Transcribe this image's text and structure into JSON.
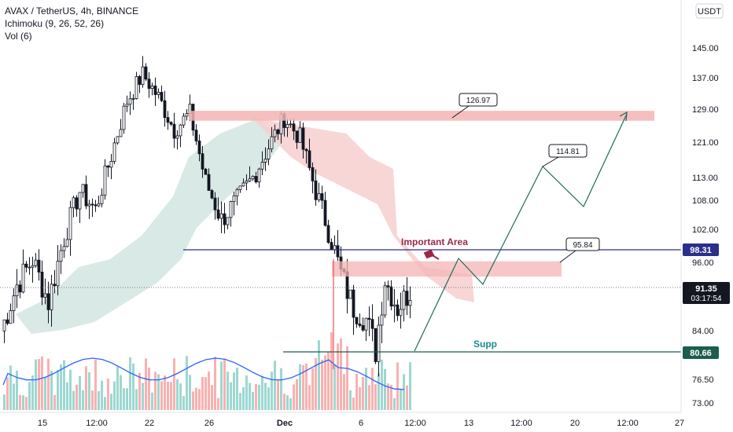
{
  "legend": {
    "symbol_line": "AVAX / TetherUS, 4h, BINANCE",
    "indicator1": "Ichimoku (9, 26, 52, 26)",
    "indicator2": "Vol (6)"
  },
  "currency_button": "USDT",
  "colors": {
    "up": "#26a69a",
    "down": "#ef5350",
    "candle": "#131722",
    "resistance_zone": "#f4b4b4",
    "level_line": "#2a2e8c",
    "support_line": "#1b5e50",
    "path_line": "#1e6b58",
    "important_text": "#9c2748",
    "volume_ma": "#2962ff",
    "cloud_green": "#cfe3df",
    "cloud_red": "#f7cfcf"
  },
  "chart_data": {
    "type": "candlestick",
    "y_axis": {
      "ticks": [
        "145.00",
        "137.00",
        "129.00",
        "121.00",
        "113.00",
        "108.00",
        "102.00",
        "96.00",
        "84.00",
        "76.50",
        "73.00"
      ],
      "current_price": "91.35",
      "countdown": "03:17:54",
      "label_980": "98.31",
      "label_806": "80.66"
    },
    "x_axis": {
      "ticks": [
        "15",
        "12:00",
        "22",
        "26",
        "Dec",
        "6",
        "12:00",
        "13",
        "12:00",
        "20",
        "12:00",
        "27"
      ]
    },
    "annotations": {
      "important_area": "Important Area",
      "support": "Supp",
      "callout_top": "126.97",
      "callout_mid": "114.81",
      "callout_low": "95.84"
    },
    "price_path": [
      {
        "date_index": 0,
        "open": 86.5,
        "close": 84.0
      },
      {
        "date_index": 5,
        "open": 84.0,
        "close": 92.0
      },
      {
        "date_index": 10,
        "open": 92.0,
        "close": 96.5
      },
      {
        "date_index": 15,
        "open": 96.5,
        "close": 89.0
      },
      {
        "date_index": 20,
        "open": 89.0,
        "close": 100.5
      },
      {
        "date_index": 25,
        "open": 100.5,
        "close": 110.0
      },
      {
        "date_index": 30,
        "open": 110.0,
        "close": 106.0
      },
      {
        "date_index": 35,
        "open": 106.0,
        "close": 118.0
      },
      {
        "date_index": 40,
        "open": 118.0,
        "close": 131.0
      },
      {
        "date_index": 45,
        "open": 131.0,
        "close": 138.0
      },
      {
        "date_index": 50,
        "open": 138.0,
        "close": 132.0
      },
      {
        "date_index": 55,
        "open": 132.0,
        "close": 124.0
      },
      {
        "date_index": 60,
        "open": 124.0,
        "close": 128.0
      },
      {
        "date_index": 65,
        "open": 128.0,
        "close": 112.0
      },
      {
        "date_index": 70,
        "open": 112.0,
        "close": 104.0
      },
      {
        "date_index": 75,
        "open": 104.0,
        "close": 108.0
      },
      {
        "date_index": 80,
        "open": 108.0,
        "close": 113.0
      },
      {
        "date_index": 85,
        "open": 113.0,
        "close": 120.0
      },
      {
        "date_index": 90,
        "open": 120.0,
        "close": 127.0
      },
      {
        "date_index": 95,
        "open": 127.0,
        "close": 122.0
      },
      {
        "date_index": 100,
        "open": 122.0,
        "close": 110.0
      },
      {
        "date_index": 105,
        "open": 110.0,
        "close": 100.0
      },
      {
        "date_index": 108,
        "open": 100.0,
        "close": 94.0
      },
      {
        "date_index": 112,
        "open": 94.0,
        "close": 88.0
      },
      {
        "date_index": 116,
        "open": 88.0,
        "close": 86.0
      },
      {
        "date_index": 119,
        "open": 86.0,
        "close": 81.0
      },
      {
        "date_index": 122,
        "open": 81.0,
        "close": 93.0
      },
      {
        "date_index": 126,
        "open": 93.0,
        "close": 88.0
      },
      {
        "date_index": 130,
        "open": 88.0,
        "close": 91.0
      }
    ]
  }
}
